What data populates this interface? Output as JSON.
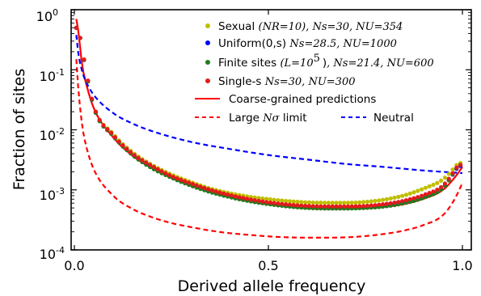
{
  "chart_data": {
    "type": "line",
    "xlabel": "Derived allele frequency",
    "ylabel": "Fraction of sites",
    "xlim": [
      0.0,
      1.0
    ],
    "ylim_log10": [
      -4,
      0
    ],
    "y_scale": "log",
    "grid": false,
    "legend_placement": "top-right",
    "x_ticks": [
      "0.0",
      "0.5",
      "1.0"
    ],
    "y_ticks": [
      {
        "base": "10",
        "exp": "0"
      },
      {
        "base": "10",
        "exp": "-1"
      },
      {
        "base": "10",
        "exp": "-2"
      },
      {
        "base": "10",
        "exp": "-3"
      },
      {
        "base": "10",
        "exp": "-4"
      }
    ],
    "legend": {
      "sexual": {
        "prefix": "Sexual ",
        "math": "(NR=10), Ns=30, NU=354"
      },
      "uniform": {
        "prefix": "Uniform(0,s) ",
        "math": "Ns=28.5, NU=1000"
      },
      "finite_pre": "Finite sites ",
      "finite_mid": "(L=10",
      "finite_exp": "5",
      "finite_post": ")",
      "finite_math": "Ns=21.4, NU=600",
      "single": {
        "prefix": "Single-s ",
        "math": "Ns=30, NU=300"
      },
      "coarse": "Coarse-grained predictions",
      "large_pre": "Large ",
      "large_math": "Nσ",
      "large_post": " limit",
      "neutral": "Neutral"
    },
    "series": [
      {
        "name": "Sexual (NR=10), Ns=30, NU=354",
        "style": "dots",
        "color": "#bfbf00",
        "x": [
          0.01,
          0.05,
          0.1,
          0.15,
          0.2,
          0.25,
          0.3,
          0.35,
          0.4,
          0.45,
          0.5,
          0.55,
          0.6,
          0.65,
          0.7,
          0.75,
          0.8,
          0.85,
          0.9,
          0.95,
          0.99
        ],
        "y": [
          0.5,
          0.025,
          0.0085,
          0.0042,
          0.0026,
          0.0018,
          0.00135,
          0.00105,
          0.00088,
          0.00077,
          0.0007,
          0.00065,
          0.00062,
          0.00061,
          0.00061,
          0.00063,
          0.00069,
          0.00081,
          0.00105,
          0.0015,
          0.0028
        ]
      },
      {
        "name": "Uniform(0,s), Ns=28.5, NU=1000",
        "style": "dots",
        "color": "#0000ff",
        "x": [
          0.01,
          0.05,
          0.1,
          0.15,
          0.2,
          0.25,
          0.3,
          0.35,
          0.4,
          0.45,
          0.5,
          0.55,
          0.6,
          0.65,
          0.7,
          0.75,
          0.8,
          0.85,
          0.9,
          0.95,
          0.99
        ],
        "y": [
          0.5,
          0.024,
          0.008,
          0.0039,
          0.0024,
          0.00165,
          0.00122,
          0.00095,
          0.00078,
          0.00067,
          0.0006,
          0.00055,
          0.00052,
          0.0005,
          0.0005,
          0.00051,
          0.00054,
          0.00061,
          0.00075,
          0.0011,
          0.0025
        ]
      },
      {
        "name": "Finite sites (L=10^5), Ns=21.4, NU=600",
        "style": "dots",
        "color": "#1e7d1e",
        "x": [
          0.01,
          0.05,
          0.1,
          0.15,
          0.2,
          0.25,
          0.3,
          0.35,
          0.4,
          0.45,
          0.5,
          0.55,
          0.6,
          0.65,
          0.7,
          0.75,
          0.8,
          0.85,
          0.9,
          0.95,
          0.99
        ],
        "y": [
          0.5,
          0.024,
          0.0079,
          0.0038,
          0.0023,
          0.0016,
          0.00118,
          0.00092,
          0.00076,
          0.00065,
          0.00058,
          0.00053,
          0.0005,
          0.00049,
          0.00049,
          0.0005,
          0.00053,
          0.0006,
          0.00074,
          0.00108,
          0.0026
        ]
      },
      {
        "name": "Single-s, Ns=30, NU=300",
        "style": "dots",
        "color": "#e31a1c",
        "x": [
          0.01,
          0.05,
          0.1,
          0.15,
          0.2,
          0.25,
          0.3,
          0.35,
          0.4,
          0.45,
          0.5,
          0.55,
          0.6,
          0.65,
          0.7,
          0.75,
          0.8,
          0.85,
          0.9,
          0.95,
          0.99
        ],
        "y": [
          0.5,
          0.025,
          0.0082,
          0.004,
          0.0025,
          0.0017,
          0.00128,
          0.001,
          0.00082,
          0.0007,
          0.00062,
          0.00057,
          0.00054,
          0.00053,
          0.00053,
          0.00054,
          0.00058,
          0.00066,
          0.00082,
          0.00118,
          0.0026
        ]
      },
      {
        "name": "Coarse-grained predictions",
        "style": "solid",
        "color": "#ff0000",
        "x": [
          0.005,
          0.01,
          0.02,
          0.03,
          0.05,
          0.1,
          0.15,
          0.2,
          0.25,
          0.3,
          0.35,
          0.4,
          0.45,
          0.5,
          0.55,
          0.6,
          0.65,
          0.7,
          0.75,
          0.8,
          0.85,
          0.9,
          0.95,
          0.98,
          1.0
        ],
        "y": [
          0.7,
          0.45,
          0.12,
          0.06,
          0.023,
          0.0075,
          0.0037,
          0.0023,
          0.00158,
          0.00117,
          0.00091,
          0.00075,
          0.00064,
          0.00057,
          0.00052,
          0.00049,
          0.00048,
          0.00048,
          0.00049,
          0.00052,
          0.00058,
          0.00071,
          0.001,
          0.0016,
          0.0024
        ]
      },
      {
        "name": "Large Nσ limit",
        "style": "dashed",
        "color": "#ff0000",
        "x": [
          0.005,
          0.01,
          0.02,
          0.03,
          0.05,
          0.1,
          0.15,
          0.2,
          0.25,
          0.3,
          0.35,
          0.4,
          0.45,
          0.5,
          0.55,
          0.6,
          0.65,
          0.7,
          0.75,
          0.8,
          0.85,
          0.9,
          0.95,
          0.98,
          1.0
        ],
        "y": [
          0.15,
          0.05,
          0.012,
          0.0055,
          0.0022,
          0.0008,
          0.00048,
          0.00035,
          0.00028,
          0.00024,
          0.00021,
          0.00019,
          0.000178,
          0.000168,
          0.000162,
          0.00016,
          0.00016,
          0.000162,
          0.00017,
          0.000185,
          0.00021,
          0.00026,
          0.00038,
          0.0007,
          0.0013
        ]
      },
      {
        "name": "Neutral",
        "style": "dashed",
        "color": "#0000ff",
        "x": [
          0.005,
          0.01,
          0.02,
          0.03,
          0.05,
          0.1,
          0.15,
          0.2,
          0.3,
          0.4,
          0.5,
          0.6,
          0.7,
          0.8,
          0.9,
          1.0
        ],
        "y": [
          0.38,
          0.19,
          0.095,
          0.063,
          0.038,
          0.019,
          0.0127,
          0.0095,
          0.0063,
          0.0048,
          0.0038,
          0.0032,
          0.0027,
          0.0024,
          0.0021,
          0.0019
        ]
      }
    ]
  }
}
